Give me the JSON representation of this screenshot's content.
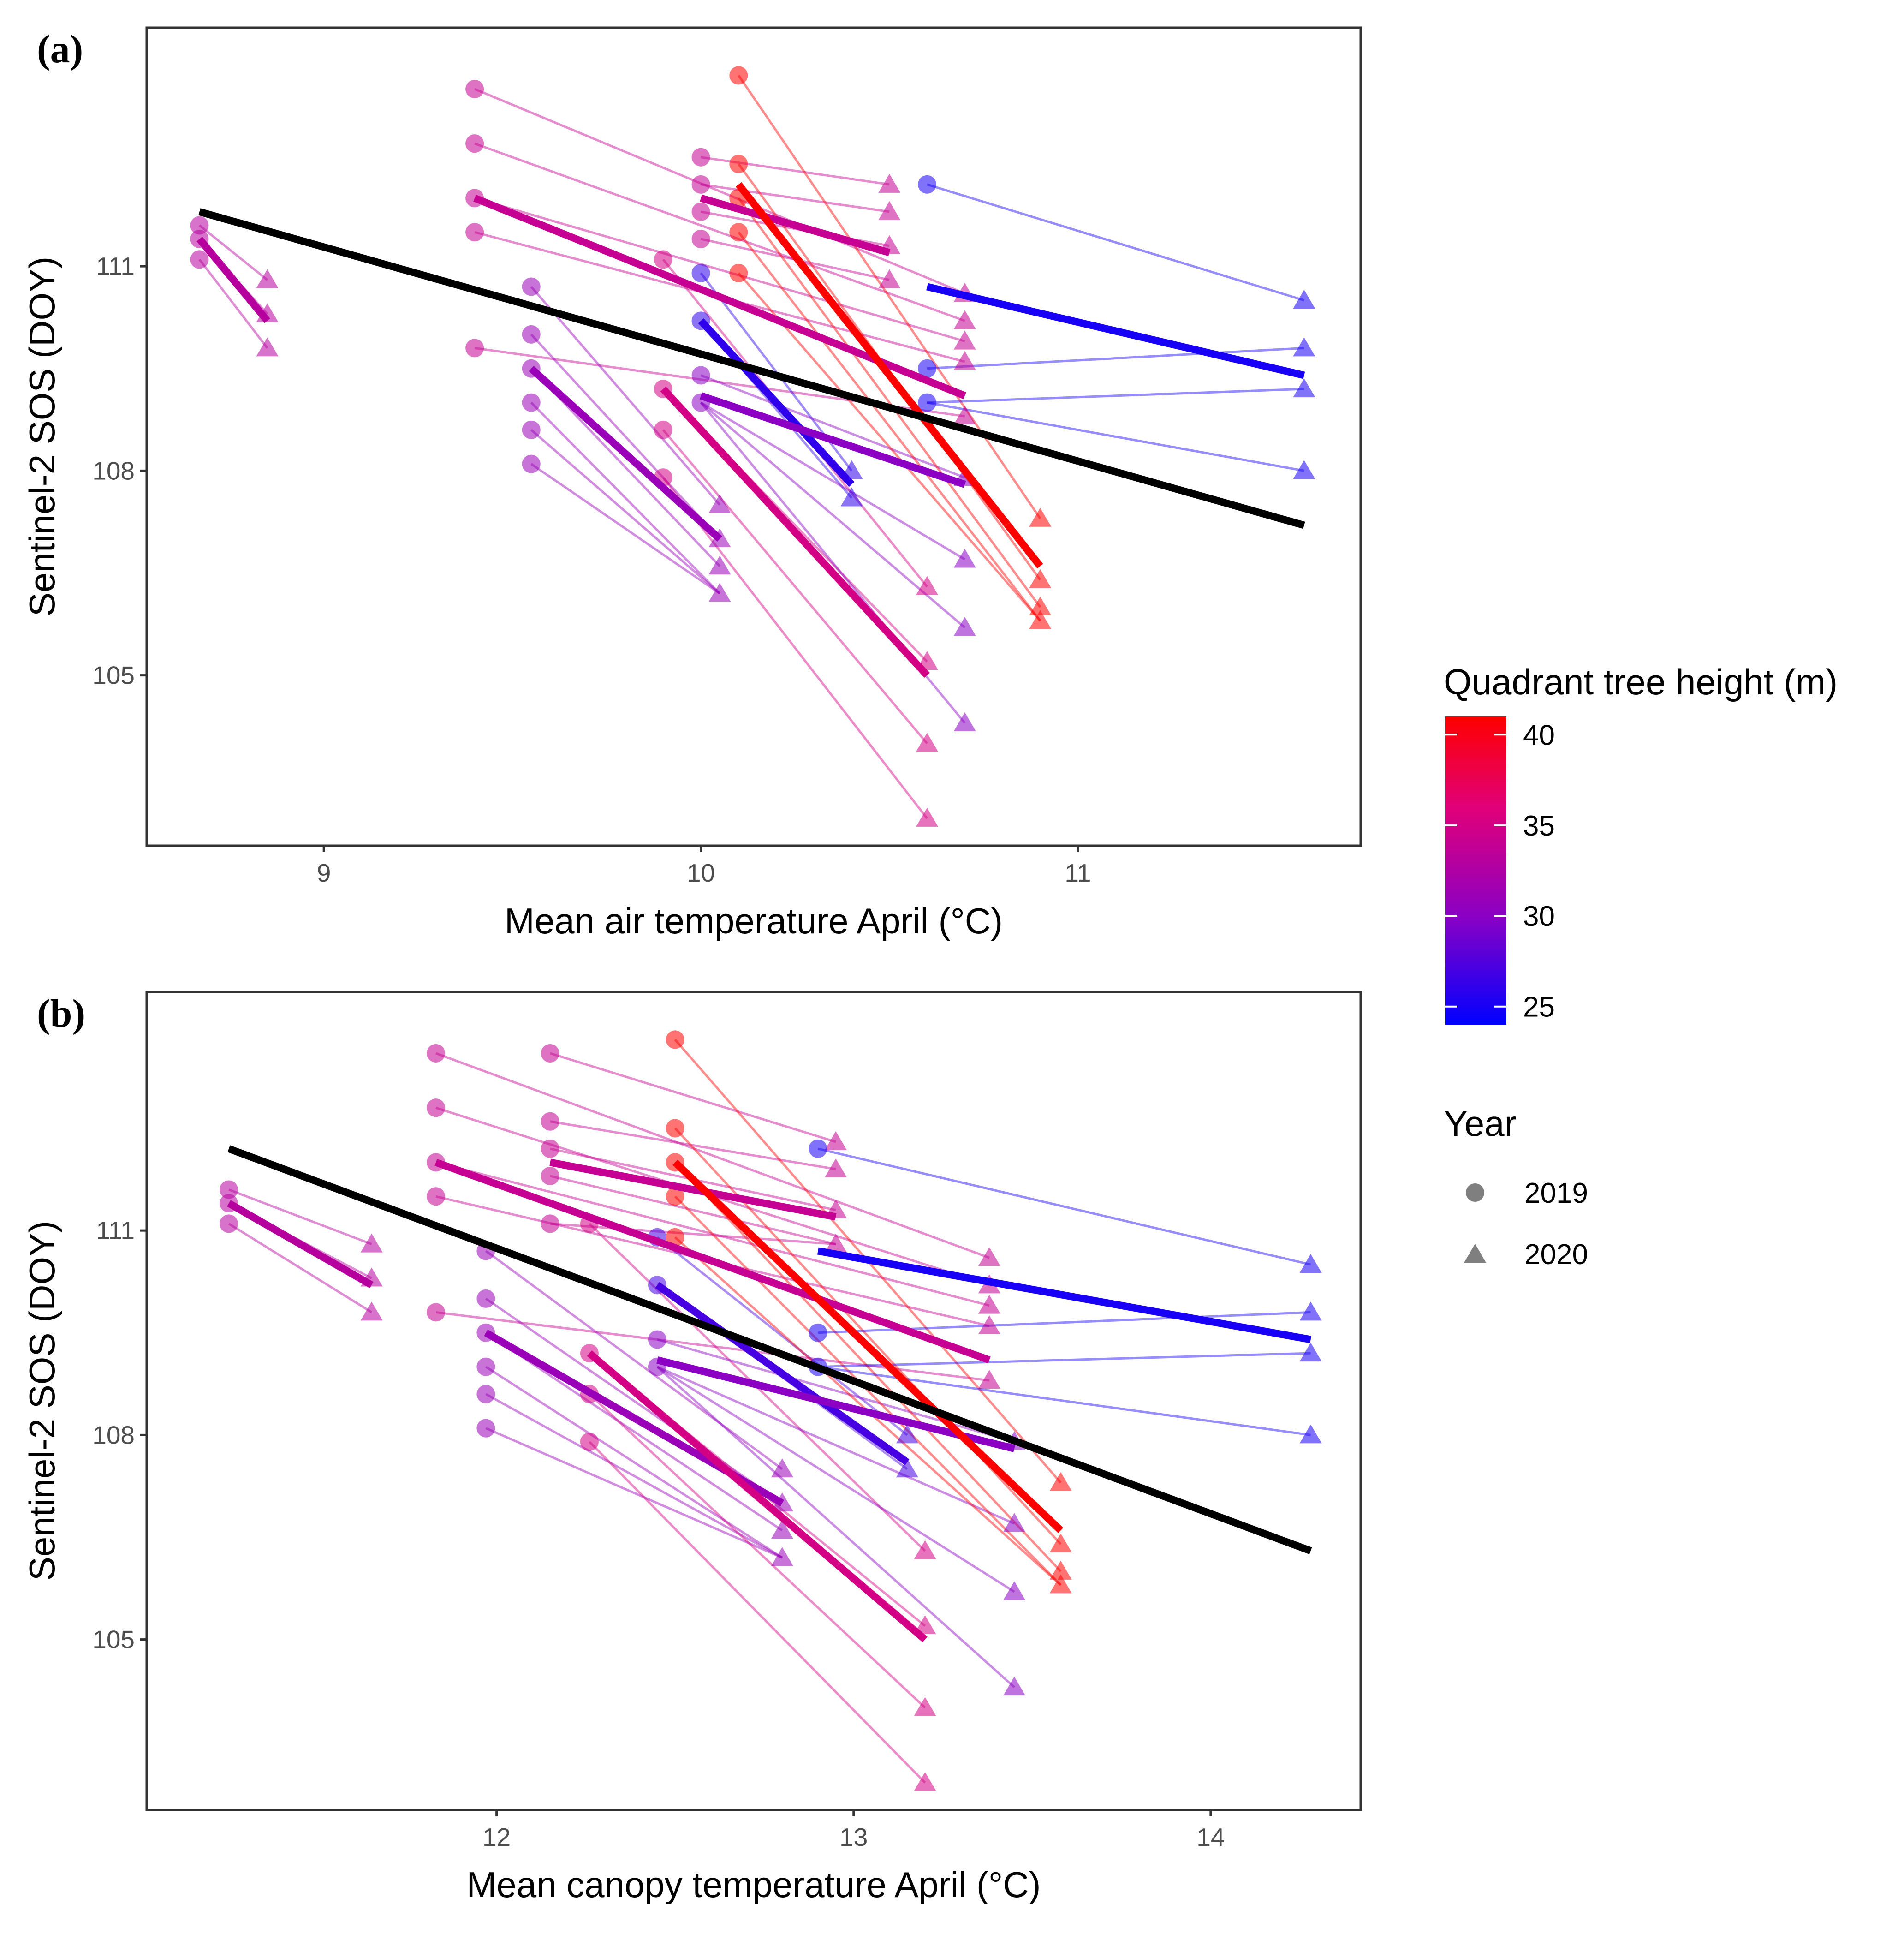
{
  "chart_data": [
    {
      "type": "line",
      "panel_label": "(a)",
      "xlabel": "Mean air temperature April (°C)",
      "ylabel": "Sentinel-2 SOS (DOY)",
      "xlim": [
        8.53,
        11.75
      ],
      "ylim": [
        102.5,
        114.5
      ],
      "xticks": [
        9,
        10,
        11
      ],
      "yticks": [
        105,
        108,
        111
      ],
      "x_2019": [
        8.67,
        9.4,
        9.55,
        9.9,
        10.0,
        10.1,
        10.6
      ],
      "x_2020": [
        8.85,
        10.0,
        10.5,
        10.7,
        10.9,
        11.6
      ],
      "overall_fit": {
        "x": [
          8.67,
          11.6
        ],
        "y": [
          111.8,
          107.2
        ]
      },
      "groups": [
        {
          "height": 33,
          "x0": 8.67,
          "x1": 8.85,
          "fit": [
            111.4,
            110.2
          ],
          "y2019": [
            111.6,
            111.4,
            111.1
          ],
          "y2020": [
            110.8,
            110.3,
            109.8
          ]
        },
        {
          "height": 34,
          "x0": 9.4,
          "x1": 10.7,
          "fit": [
            112.0,
            109.1
          ],
          "y2019": [
            113.6,
            112.8,
            112.0,
            111.5,
            109.8
          ],
          "y2020": [
            110.6,
            110.2,
            109.9,
            109.6,
            108.8
          ]
        },
        {
          "height": 31,
          "x0": 9.55,
          "x1": 10.05,
          "fit": [
            109.5,
            107.0
          ],
          "y2019": [
            110.7,
            110.0,
            109.5,
            109.0,
            108.6,
            108.1
          ],
          "y2020": [
            107.5,
            107.0,
            106.6,
            106.2
          ]
        },
        {
          "height": 35,
          "x0": 9.9,
          "x1": 10.6,
          "fit": [
            109.2,
            105.0
          ],
          "y2019": [
            111.1,
            109.2,
            108.6,
            107.9
          ],
          "y2020": [
            106.3,
            105.2,
            104.0,
            102.9
          ]
        },
        {
          "height": 34,
          "x0": 10.0,
          "x1": 10.5,
          "fit": [
            112.0,
            111.2
          ],
          "y2019": [
            112.6,
            112.2,
            111.8,
            111.4
          ],
          "y2020": [
            112.2,
            111.8,
            111.3,
            110.8
          ]
        },
        {
          "height": 26,
          "x0": 10.0,
          "x1": 10.4,
          "fit": [
            110.2,
            107.8
          ],
          "y2019": [
            110.9,
            110.2
          ],
          "y2020": [
            108.0,
            107.6
          ]
        },
        {
          "height": 30,
          "x0": 10.0,
          "x1": 10.7,
          "fit": [
            109.1,
            107.8
          ],
          "y2019": [
            109.4,
            109.0
          ],
          "y2020": [
            107.9,
            106.7,
            105.7,
            104.3
          ]
        },
        {
          "height": 41,
          "x0": 10.1,
          "x1": 10.9,
          "fit": [
            112.2,
            106.6
          ],
          "y2019": [
            113.8,
            112.5,
            112.0,
            111.5,
            110.9
          ],
          "y2020": [
            107.3,
            106.4,
            106.0,
            105.8
          ]
        },
        {
          "height": 25,
          "x0": 10.6,
          "x1": 11.6,
          "fit": [
            110.7,
            109.4
          ],
          "y2019": [
            112.2,
            109.5,
            109.0
          ],
          "y2020": [
            110.5,
            109.8,
            109.2,
            108.0
          ]
        }
      ]
    },
    {
      "type": "line",
      "panel_label": "(b)",
      "xlabel": "Mean canopy temperature April (°C)",
      "ylabel": "Sentinel-2 SOS (DOY)",
      "xlim": [
        11.02,
        14.42
      ],
      "ylim": [
        102.5,
        114.5
      ],
      "xticks": [
        12,
        13,
        14
      ],
      "yticks": [
        105,
        108,
        111
      ],
      "x_2019": [
        11.25,
        11.83,
        11.97,
        12.15,
        12.26,
        12.45,
        12.5,
        12.9
      ],
      "x_2020": [
        11.65,
        12.8,
        12.95,
        13.2,
        13.45,
        13.58,
        14.28
      ],
      "overall_fit": {
        "x": [
          11.25,
          14.28
        ],
        "y": [
          112.2,
          106.3
        ]
      },
      "groups": [
        {
          "height": 33,
          "x1_label": "",
          "x0": 11.25,
          "x1": 11.65,
          "fit": [
            111.4,
            110.2
          ],
          "y2019": [
            111.6,
            111.4,
            111.1
          ],
          "y2020": [
            110.8,
            110.3,
            109.8
          ]
        },
        {
          "height": 34,
          "x0": 11.83,
          "x1": 13.38,
          "fit": [
            112.0,
            109.1
          ],
          "y2019": [
            113.6,
            112.8,
            112.0,
            111.5,
            109.8
          ],
          "y2020": [
            110.6,
            110.2,
            109.9,
            109.6,
            108.8
          ]
        },
        {
          "height": 31,
          "x0": 11.97,
          "x1": 12.8,
          "fit": [
            109.5,
            107.0
          ],
          "y2019": [
            110.7,
            110.0,
            109.5,
            109.0,
            108.6,
            108.1
          ],
          "y2020": [
            107.5,
            107.0,
            106.6,
            106.2
          ]
        },
        {
          "height": 35,
          "x0": 12.26,
          "x1": 13.2,
          "fit": [
            109.2,
            105.0
          ],
          "y2019": [
            111.1,
            109.2,
            108.6,
            107.9
          ],
          "y2020": [
            106.3,
            105.2,
            104.0,
            102.9
          ]
        },
        {
          "height": 34,
          "x0": 12.15,
          "x1": 12.95,
          "fit": [
            112.0,
            111.2
          ],
          "y2019": [
            113.6,
            112.6,
            112.2,
            111.8,
            111.1
          ],
          "y2020": [
            112.3,
            111.9,
            111.3,
            110.8
          ]
        },
        {
          "height": 27,
          "x0": 12.45,
          "x1": 13.15,
          "fit": [
            110.2,
            107.6
          ],
          "y2019": [
            110.9,
            110.2
          ],
          "y2020": [
            108.0,
            107.5
          ]
        },
        {
          "height": 30,
          "x0": 12.45,
          "x1": 13.45,
          "fit": [
            109.1,
            107.8
          ],
          "y2019": [
            109.4,
            109.0
          ],
          "y2020": [
            107.9,
            106.7,
            105.7,
            104.3
          ]
        },
        {
          "height": 41,
          "x0": 12.5,
          "x1": 13.58,
          "fit": [
            112.0,
            106.6
          ],
          "y2019": [
            113.8,
            112.5,
            112.0,
            111.5,
            110.9
          ],
          "y2020": [
            107.3,
            106.4,
            106.0,
            105.8
          ]
        },
        {
          "height": 25,
          "x0": 12.9,
          "x1": 14.28,
          "fit": [
            110.7,
            109.4
          ],
          "y2019": [
            112.2,
            109.5,
            109.0
          ],
          "y2020": [
            110.5,
            109.8,
            109.2,
            108.0
          ]
        }
      ]
    }
  ],
  "legend": {
    "height_title": "Quadrant tree height (m)",
    "height_ticks": [
      {
        "value": 40,
        "label": "40"
      },
      {
        "value": 35,
        "label": "35"
      },
      {
        "value": 30,
        "label": "30"
      },
      {
        "value": 25,
        "label": "25"
      }
    ],
    "height_range": [
      24,
      41
    ],
    "year_title": "Year",
    "year_items": [
      {
        "label": "2019",
        "shape": "circle"
      },
      {
        "label": "2020",
        "shape": "triangle"
      }
    ]
  },
  "colors": {
    "low": "#0000ff",
    "mid": "#aa00aa",
    "high": "#ff0000",
    "overall": "#000000",
    "point_fill_gray": "#7f7f7f"
  }
}
